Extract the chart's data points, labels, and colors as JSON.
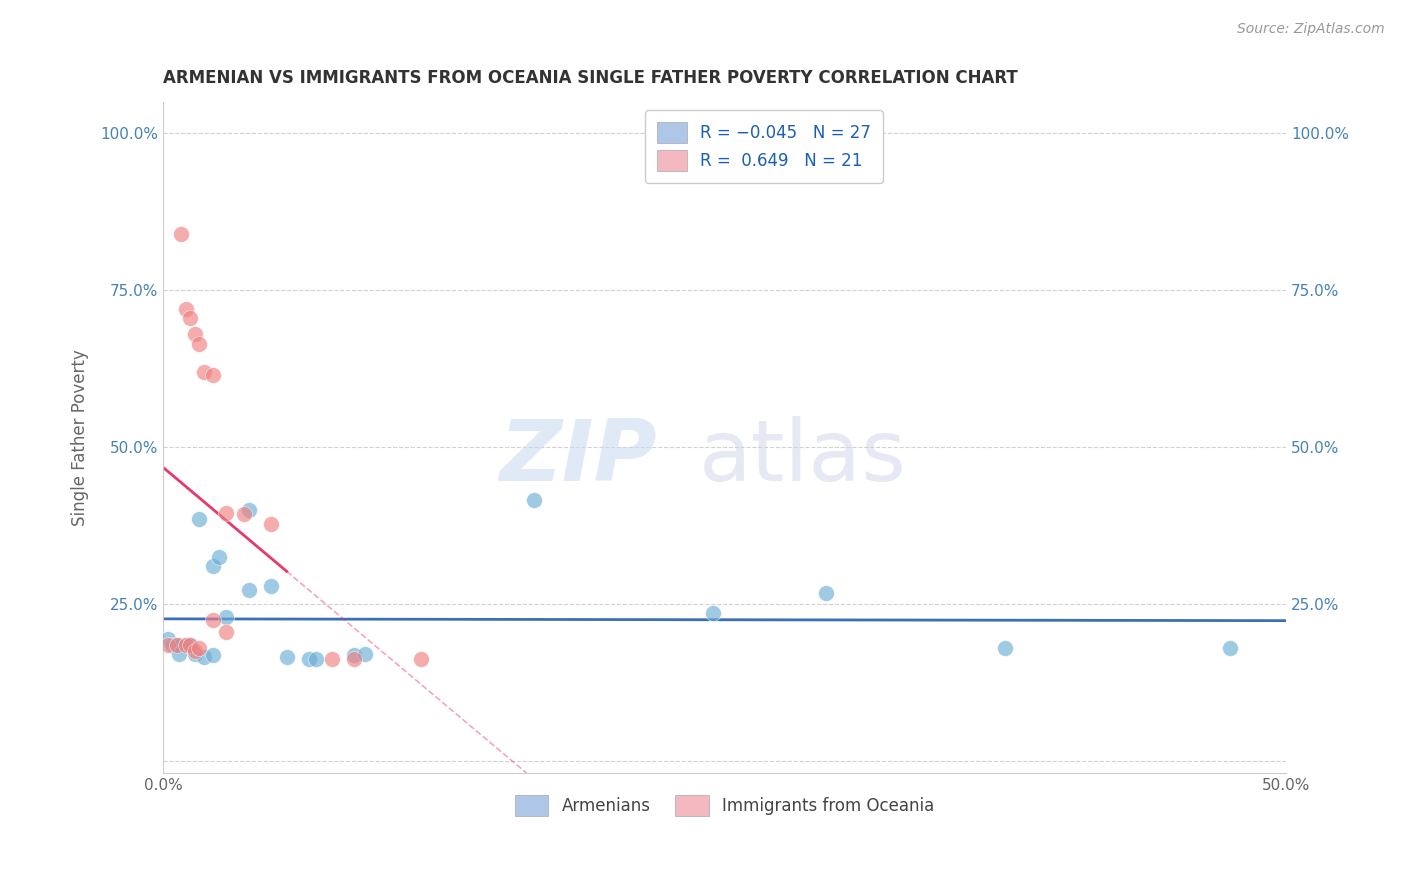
{
  "title": "ARMENIAN VS IMMIGRANTS FROM OCEANIA SINGLE FATHER POVERTY CORRELATION CHART",
  "source": "Source: ZipAtlas.com",
  "ylabel": "Single Father Poverty",
  "xlim": [
    0.0,
    0.5
  ],
  "ylim": [
    -0.02,
    1.05
  ],
  "xticks": [
    0.0,
    0.1,
    0.2,
    0.3,
    0.4,
    0.5
  ],
  "yticks": [
    0.0,
    0.25,
    0.5,
    0.75,
    1.0
  ],
  "xtick_labels": [
    "0.0%",
    "",
    "",
    "",
    "",
    "50.0%"
  ],
  "ytick_labels": [
    "",
    "25.0%",
    "50.0%",
    "75.0%",
    "100.0%"
  ],
  "armenian_color": "#6baed6",
  "oceania_color": "#f08080",
  "armenian_legend_color": "#aec6e8",
  "oceania_legend_color": "#f4b8c1",
  "trendline_armenian_color": "#3a6fba",
  "trendline_oceania_color": "#e8396b",
  "armenian_points": [
    [
      0.002,
      0.195
    ],
    [
      0.004,
      0.185
    ],
    [
      0.006,
      0.185
    ],
    [
      0.008,
      0.185
    ],
    [
      0.01,
      0.185
    ],
    [
      0.012,
      0.185
    ],
    [
      0.007,
      0.17
    ],
    [
      0.014,
      0.17
    ],
    [
      0.018,
      0.165
    ],
    [
      0.022,
      0.168
    ],
    [
      0.016,
      0.385
    ],
    [
      0.038,
      0.4
    ],
    [
      0.022,
      0.31
    ],
    [
      0.025,
      0.325
    ],
    [
      0.028,
      0.23
    ],
    [
      0.038,
      0.272
    ],
    [
      0.048,
      0.278
    ],
    [
      0.055,
      0.165
    ],
    [
      0.065,
      0.162
    ],
    [
      0.068,
      0.162
    ],
    [
      0.085,
      0.168
    ],
    [
      0.09,
      0.17
    ],
    [
      0.165,
      0.415
    ],
    [
      0.245,
      0.235
    ],
    [
      0.295,
      0.268
    ],
    [
      0.375,
      0.18
    ],
    [
      0.475,
      0.18
    ]
  ],
  "oceania_points": [
    [
      0.002,
      0.185
    ],
    [
      0.006,
      0.185
    ],
    [
      0.008,
      0.84
    ],
    [
      0.01,
      0.72
    ],
    [
      0.012,
      0.705
    ],
    [
      0.014,
      0.68
    ],
    [
      0.016,
      0.665
    ],
    [
      0.018,
      0.62
    ],
    [
      0.022,
      0.615
    ],
    [
      0.028,
      0.395
    ],
    [
      0.036,
      0.393
    ],
    [
      0.022,
      0.225
    ],
    [
      0.028,
      0.205
    ],
    [
      0.01,
      0.185
    ],
    [
      0.012,
      0.185
    ],
    [
      0.014,
      0.175
    ],
    [
      0.016,
      0.18
    ],
    [
      0.048,
      0.378
    ],
    [
      0.075,
      0.162
    ],
    [
      0.085,
      0.162
    ],
    [
      0.115,
      0.162
    ]
  ],
  "trendline_armenian_xrange": [
    0.0,
    0.5
  ],
  "trendline_oceania_xrange": [
    0.0,
    0.055
  ],
  "trendline_oceania_dashed_xrange": [
    0.055,
    0.29
  ]
}
